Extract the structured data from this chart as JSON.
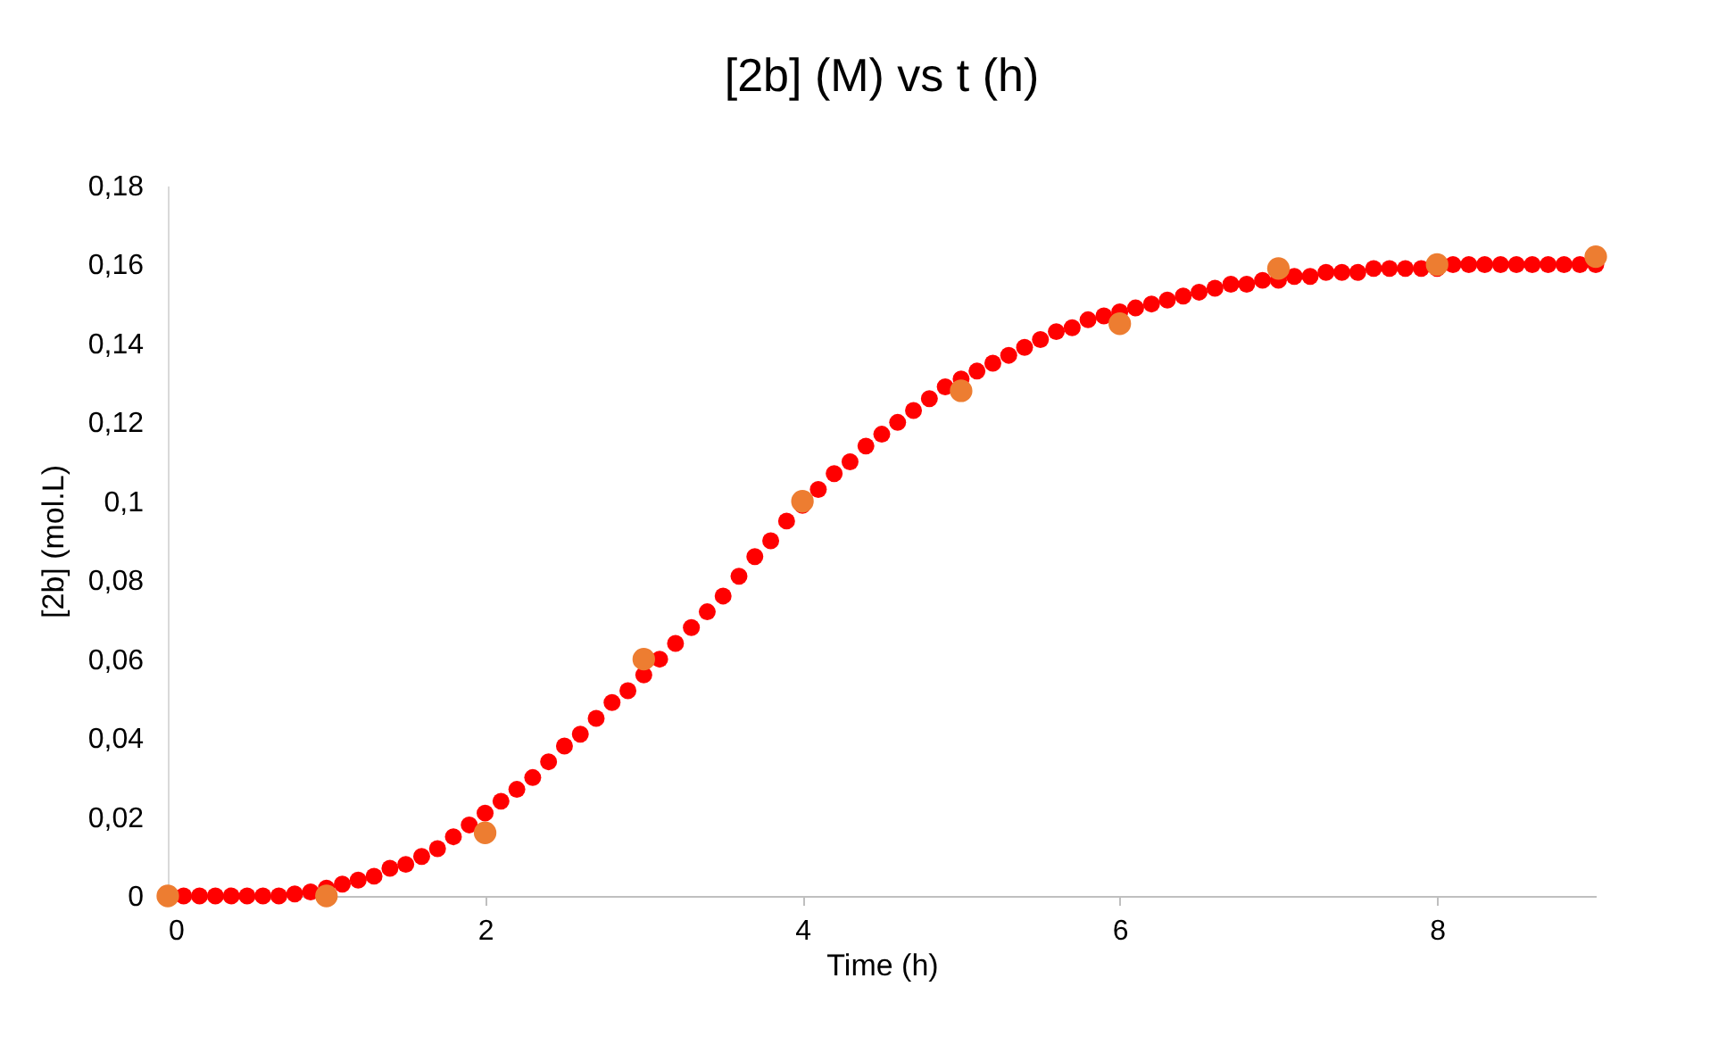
{
  "chart_data": {
    "type": "scatter",
    "title": "[2b] (M) vs t (h)",
    "xlabel": "Time (h)",
    "ylabel": "[2b] (mol.L)",
    "xlim": [
      0,
      9
    ],
    "xticks": [
      0,
      2,
      4,
      6,
      8
    ],
    "ylim": [
      0,
      0.18
    ],
    "yticks": [
      0,
      {
        "value": 0.02,
        "label": "0,02"
      },
      {
        "value": 0.04,
        "label": "0,04"
      },
      {
        "value": 0.06,
        "label": "0,06"
      },
      {
        "value": 0.08,
        "label": "0,08"
      },
      {
        "value": 0.1,
        "label": "0,1"
      },
      {
        "value": 0.12,
        "label": "0,12"
      },
      {
        "value": 0.14,
        "label": "0,14"
      },
      {
        "value": 0.16,
        "label": "0,16"
      },
      {
        "value": 0.18,
        "label": "0,18"
      }
    ],
    "grid": false,
    "marker": "circle",
    "series": [
      {
        "color": "#ff0000",
        "x": [
          0.1,
          0.2,
          0.3,
          0.4,
          0.5,
          0.6,
          0.7,
          0.8,
          0.9,
          1,
          1.1,
          1.2,
          1.3,
          1.4,
          1.5,
          1.6,
          1.7,
          1.8,
          1.9,
          2,
          2.1,
          2.2,
          2.3,
          2.4,
          2.5,
          2.6,
          2.7,
          2.8,
          2.9,
          3,
          3.1,
          3.2,
          3.3,
          3.4,
          3.5,
          3.6,
          3.7,
          3.8,
          3.9,
          4,
          4.1,
          4.2,
          4.3,
          4.4,
          4.5,
          4.6,
          4.7,
          4.8,
          4.9,
          5,
          5.1,
          5.2,
          5.3,
          5.4,
          5.5,
          5.6,
          5.7,
          5.8,
          5.9,
          6,
          6.1,
          6.2,
          6.3,
          6.4,
          6.5,
          6.6,
          6.7,
          6.8,
          6.9,
          7,
          7.1,
          7.2,
          7.3,
          7.4,
          7.5,
          7.6,
          7.7,
          7.8,
          7.9,
          8,
          8.1,
          8.2,
          8.3,
          8.4,
          8.5,
          8.6,
          8.7,
          8.8,
          8.9,
          9
        ],
        "values": [
          0,
          0,
          0,
          0,
          0,
          0,
          0,
          0.0005,
          0.001,
          0.002,
          0.003,
          0.004,
          0.005,
          0.007,
          0.008,
          0.01,
          0.012,
          0.015,
          0.018,
          0.021,
          0.024,
          0.027,
          0.03,
          0.034,
          0.038,
          0.041,
          0.045,
          0.049,
          0.052,
          0.056,
          0.06,
          0.064,
          0.068,
          0.072,
          0.076,
          0.081,
          0.086,
          0.09,
          0.095,
          0.099,
          0.103,
          0.107,
          0.11,
          0.114,
          0.117,
          0.12,
          0.123,
          0.126,
          0.129,
          0.131,
          0.133,
          0.135,
          0.137,
          0.139,
          0.141,
          0.143,
          0.144,
          0.146,
          0.147,
          0.148,
          0.149,
          0.15,
          0.151,
          0.152,
          0.153,
          0.154,
          0.155,
          0.155,
          0.156,
          0.156,
          0.157,
          0.157,
          0.158,
          0.158,
          0.158,
          0.159,
          0.159,
          0.159,
          0.159,
          0.159,
          0.16,
          0.16,
          0.16,
          0.16,
          0.16,
          0.16,
          0.16,
          0.16,
          0.16,
          0.16
        ]
      },
      {
        "color": "#ed7d31",
        "x": [
          0,
          1,
          2,
          3,
          4,
          5,
          6,
          7,
          8,
          9
        ],
        "values": [
          0,
          0,
          0.016,
          0.06,
          0.1,
          0.128,
          0.145,
          0.159,
          0.16,
          0.162
        ]
      }
    ]
  }
}
